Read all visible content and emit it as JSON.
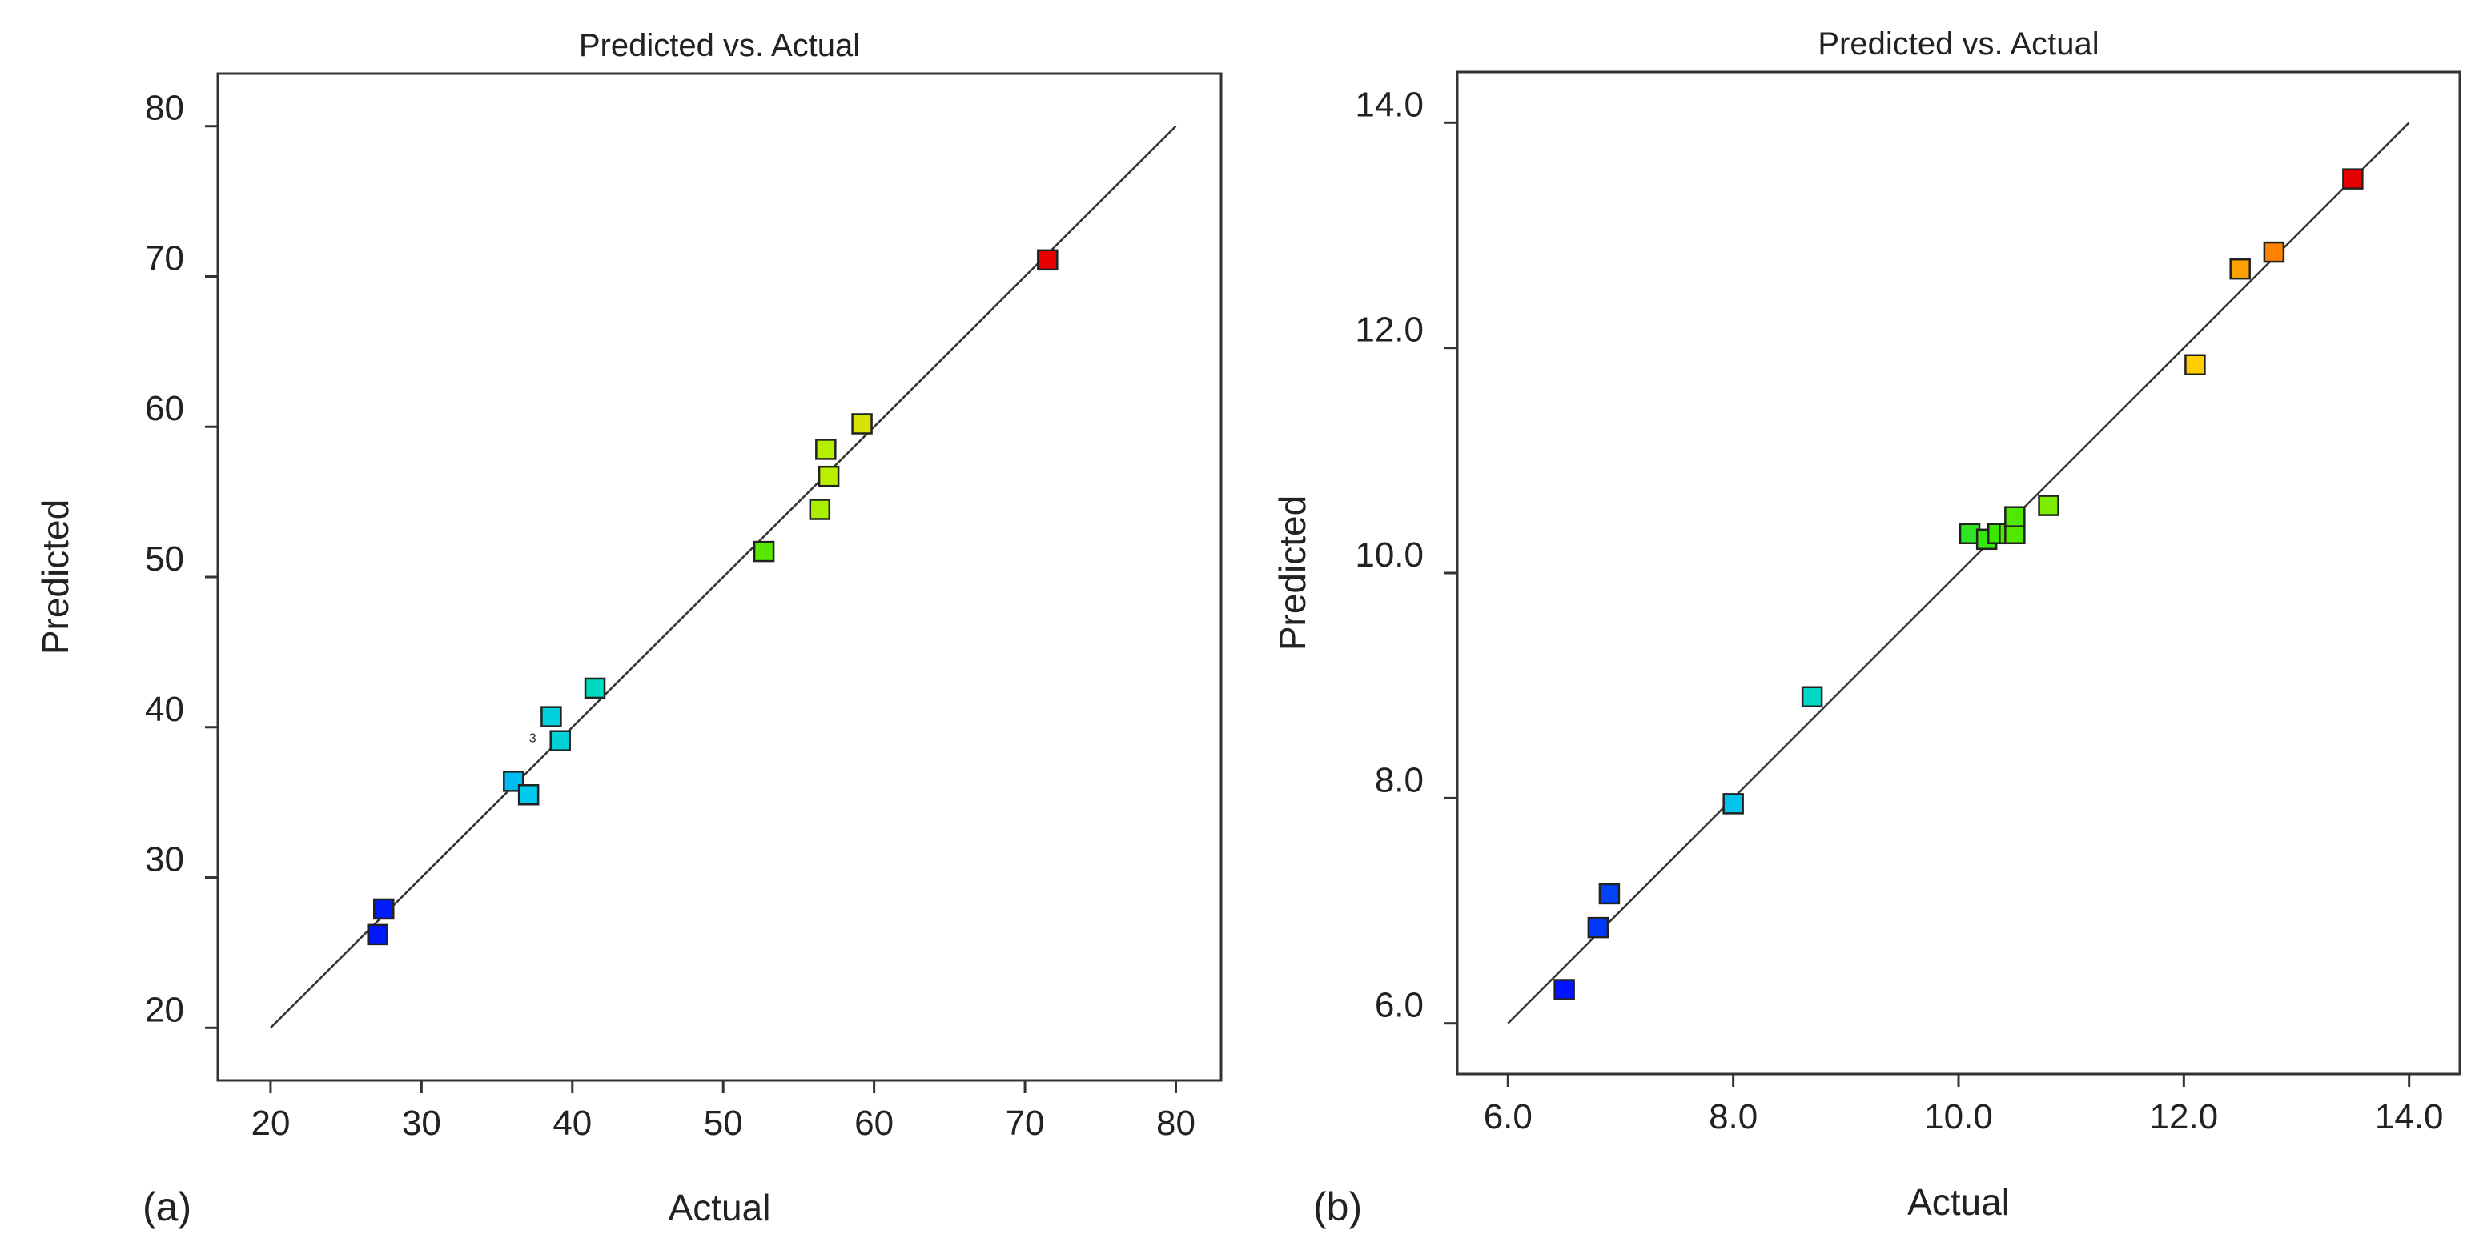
{
  "chart_data": [
    {
      "type": "scatter",
      "panel_label": "(a)",
      "title": "Predicted vs. Actual",
      "xlabel": "Actual",
      "ylabel": "Predicted",
      "xlim": [
        16.5,
        83
      ],
      "ylim": [
        16.5,
        83.5
      ],
      "xticks": [
        20,
        30,
        40,
        50,
        60,
        70,
        80
      ],
      "yticks": [
        20,
        30,
        40,
        50,
        60,
        70,
        80
      ],
      "tick_decimals": 0,
      "reference_line": [
        [
          20,
          20
        ],
        [
          80,
          80
        ]
      ],
      "color_range": [
        27,
        71.5
      ],
      "points": [
        {
          "x": 27.1,
          "y": 26.2
        },
        {
          "x": 27.5,
          "y": 27.9
        },
        {
          "x": 36.1,
          "y": 36.4
        },
        {
          "x": 37.1,
          "y": 35.5
        },
        {
          "x": 38.6,
          "y": 40.7
        },
        {
          "x": 39.2,
          "y": 39.1,
          "label": "3"
        },
        {
          "x": 41.5,
          "y": 42.6
        },
        {
          "x": 52.7,
          "y": 51.7
        },
        {
          "x": 56.4,
          "y": 54.5
        },
        {
          "x": 56.8,
          "y": 58.5
        },
        {
          "x": 57.0,
          "y": 56.7
        },
        {
          "x": 59.2,
          "y": 60.2
        },
        {
          "x": 71.5,
          "y": 71.1
        }
      ]
    },
    {
      "type": "scatter",
      "panel_label": "(b)",
      "title": "Predicted vs. Actual",
      "xlabel": "Actual",
      "ylabel": "Predicted",
      "xlim": [
        5.55,
        14.45
      ],
      "ylim": [
        5.55,
        14.45
      ],
      "xticks": [
        6,
        8,
        10,
        12,
        14
      ],
      "yticks": [
        6,
        8,
        10,
        12,
        14
      ],
      "tick_decimals": 1,
      "reference_line": [
        [
          6,
          6
        ],
        [
          14,
          14
        ]
      ],
      "color_range": [
        6.5,
        13.5
      ],
      "points": [
        {
          "x": 6.5,
          "y": 6.3
        },
        {
          "x": 6.8,
          "y": 6.85
        },
        {
          "x": 6.9,
          "y": 7.15
        },
        {
          "x": 8.0,
          "y": 7.95
        },
        {
          "x": 8.7,
          "y": 8.9
        },
        {
          "x": 10.1,
          "y": 10.35
        },
        {
          "x": 10.25,
          "y": 10.3
        },
        {
          "x": 10.35,
          "y": 10.35
        },
        {
          "x": 10.45,
          "y": 10.35
        },
        {
          "x": 10.5,
          "y": 10.35
        },
        {
          "x": 10.5,
          "y": 10.5
        },
        {
          "x": 10.8,
          "y": 10.6
        },
        {
          "x": 12.1,
          "y": 11.85
        },
        {
          "x": 12.5,
          "y": 12.7
        },
        {
          "x": 12.8,
          "y": 12.85
        },
        {
          "x": 13.5,
          "y": 13.5
        }
      ]
    }
  ]
}
